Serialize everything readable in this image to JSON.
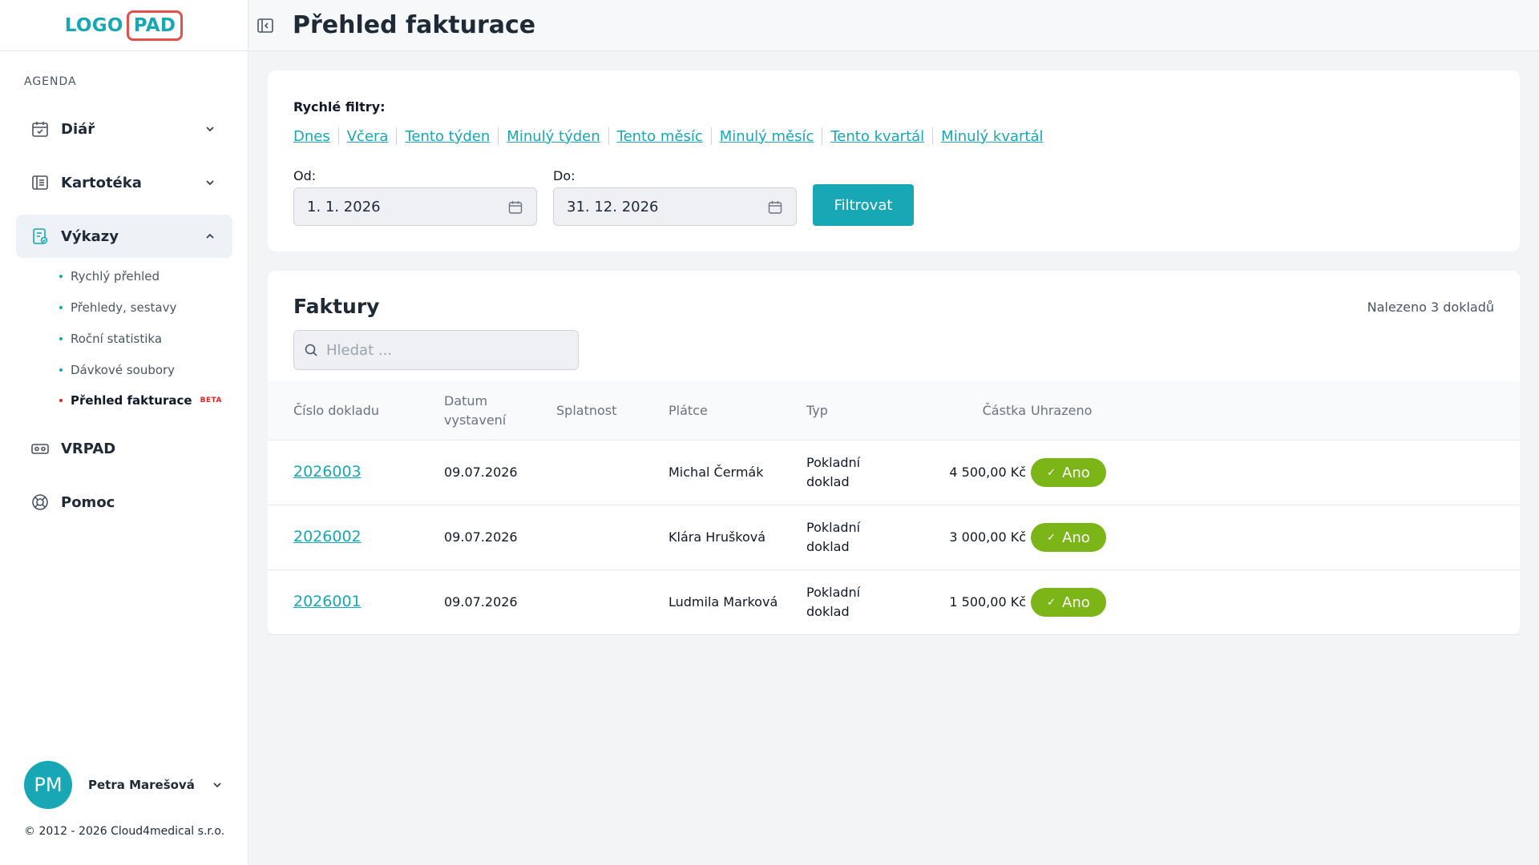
{
  "logo": {
    "part_a": "LOGO",
    "part_b": "PAD"
  },
  "sidebar": {
    "section_label": "AGENDA",
    "items": [
      {
        "label": "Diář",
        "icon": "calendar-icon"
      },
      {
        "label": "Kartotéka",
        "icon": "card-index-icon"
      },
      {
        "label": "Výkazy",
        "icon": "report-icon"
      },
      {
        "label": "VRPAD",
        "icon": "vr-icon"
      },
      {
        "label": "Pomoc",
        "icon": "lifebuoy-icon"
      }
    ],
    "sub_items": [
      {
        "label": "Rychlý přehled"
      },
      {
        "label": "Přehledy, sestavy"
      },
      {
        "label": "Roční statistika"
      },
      {
        "label": "Dávkové soubory"
      },
      {
        "label": "Přehled fakturace",
        "badge": "BETA"
      }
    ],
    "user": {
      "initials": "PM",
      "name": "Petra Marešová"
    },
    "copyright": "© 2012 - 2026 Cloud4medical s.r.o."
  },
  "header": {
    "title": "Přehled fakturace"
  },
  "filters": {
    "title": "Rychlé filtry:",
    "quick": [
      "Dnes",
      "Včera",
      "Tento týden",
      "Minulý týden",
      "Tento měsíc",
      "Minulý měsíc",
      "Tento kvartál",
      "Minulý kvartál"
    ],
    "from_label": "Od:",
    "from_value": "1. 1. 2026",
    "to_label": "Do:",
    "to_value": "31. 12. 2026",
    "button": "Filtrovat"
  },
  "invoices": {
    "title": "Faktury",
    "found": "Nalezeno 3 dokladů",
    "search_placeholder": "Hledat ...",
    "columns": [
      "Číslo dokladu",
      "Datum vystavení",
      "Splatnost",
      "Plátce",
      "Typ",
      "Částka",
      "Uhrazeno"
    ],
    "rows": [
      {
        "number": "2026003",
        "issued": "09.07.2026",
        "due": "",
        "payer": "Michal Čermák",
        "type_line1": "Pokladní",
        "type_line2": "doklad",
        "amount": "4 500,00 Kč",
        "paid": "Ano"
      },
      {
        "number": "2026002",
        "issued": "09.07.2026",
        "due": "",
        "payer": "Klára Hrušková",
        "type_line1": "Pokladní",
        "type_line2": "doklad",
        "amount": "3 000,00 Kč",
        "paid": "Ano"
      },
      {
        "number": "2026001",
        "issued": "09.07.2026",
        "due": "",
        "payer": "Ludmila Marková",
        "type_line1": "Pokladní",
        "type_line2": "doklad",
        "amount": "1 500,00 Kč",
        "paid": "Ano"
      }
    ]
  },
  "colors": {
    "accent": "#17a7b5",
    "logo_border": "#e5504a",
    "paid": "#7cb518",
    "beta": "#dc2626"
  }
}
